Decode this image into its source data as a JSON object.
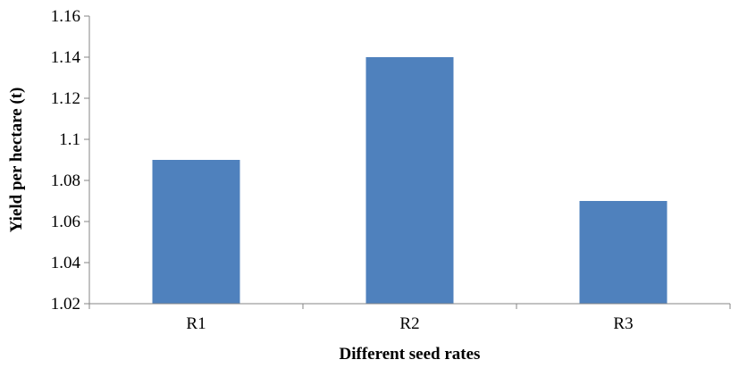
{
  "chart_data": {
    "type": "bar",
    "categories": [
      "R1",
      "R2",
      "R3"
    ],
    "values": [
      1.09,
      1.14,
      1.07
    ],
    "title": "",
    "xlabel": "Different seed rates",
    "ylabel": "Yield per hectare (t)",
    "ylim": [
      1.02,
      1.16
    ],
    "yticks": [
      "1.02",
      "1.04",
      "1.06",
      "1.08",
      "1.1",
      "1.12",
      "1.14",
      "1.16"
    ],
    "grid": false,
    "legend": "none",
    "bar_color": "#4F81BD"
  }
}
